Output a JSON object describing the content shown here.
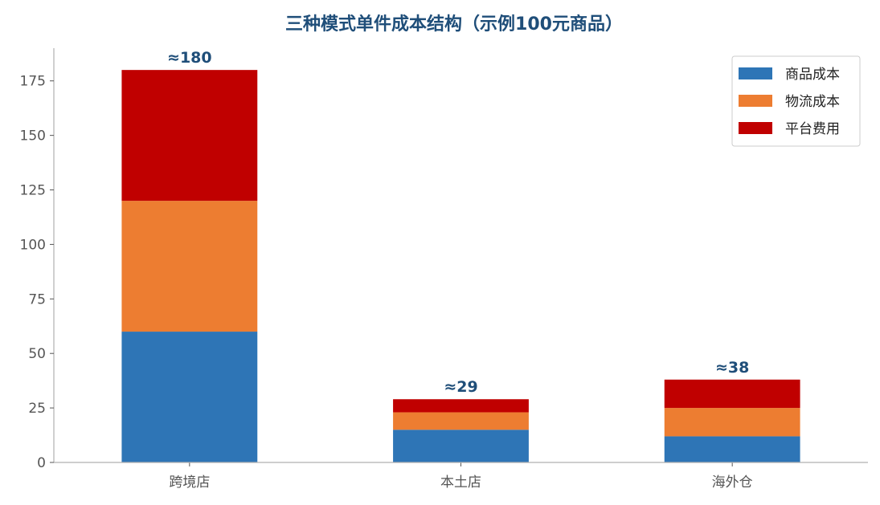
{
  "chart_data": {
    "type": "bar",
    "stacked": true,
    "title": "三种模式单件成本结构（示例100元商品）",
    "xlabel": "",
    "ylabel": "",
    "categories": [
      "跨境店",
      "本土店",
      "海外仓"
    ],
    "series": [
      {
        "name": "商品成本",
        "color": "#2e75b6",
        "values": [
          60,
          15,
          12
        ]
      },
      {
        "name": "物流成本",
        "color": "#ed7d31",
        "values": [
          60,
          8,
          13
        ]
      },
      {
        "name": "平台费用",
        "color": "#c00000",
        "values": [
          60,
          6,
          13
        ]
      }
    ],
    "totals": [
      180,
      29,
      38
    ],
    "total_labels": [
      "≈180",
      "≈29",
      "≈38"
    ],
    "ylim": [
      0,
      190
    ],
    "yticks": [
      0,
      25,
      50,
      75,
      100,
      125,
      150,
      175
    ],
    "ytick_labels": [
      "0",
      "25",
      "50",
      "75",
      "100",
      "125",
      "150",
      "175"
    ],
    "grid": false,
    "legend_position": "top-right"
  }
}
